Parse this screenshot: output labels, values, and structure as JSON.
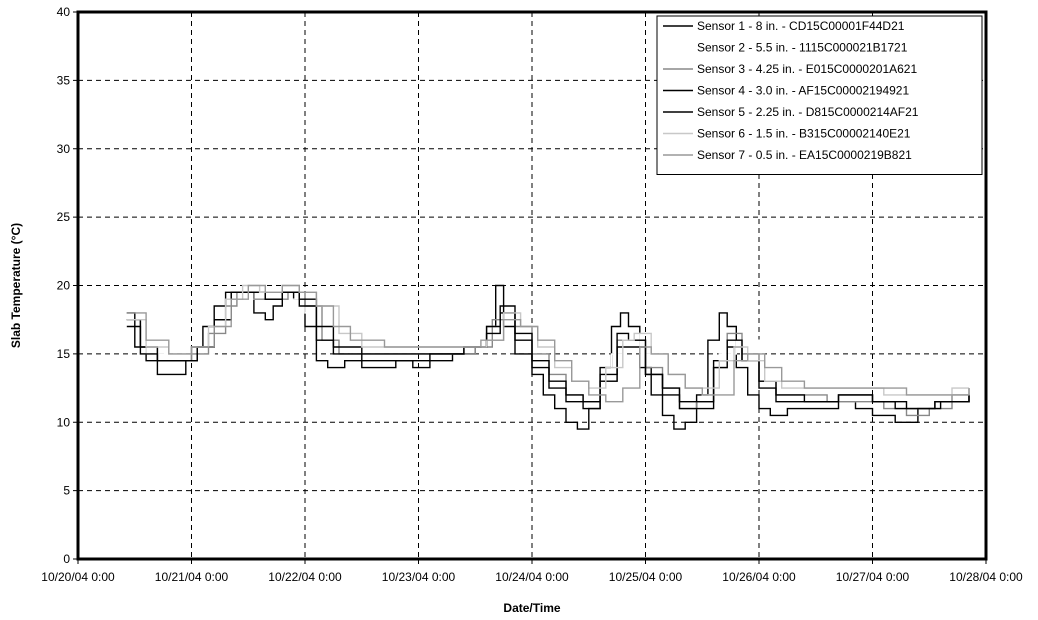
{
  "chart_data": {
    "type": "line",
    "title": "",
    "xlabel": "Date/Time",
    "ylabel": "Slab Temperature (°C)",
    "x_ticks": [
      "10/20/04 0:00",
      "10/21/04 0:00",
      "10/22/04 0:00",
      "10/23/04 0:00",
      "10/24/04 0:00",
      "10/25/04 0:00",
      "10/26/04 0:00",
      "10/27/04 0:00",
      "10/28/04 0:00"
    ],
    "x_unit": "days since 10/20/04 0:00",
    "xlim": [
      0,
      8
    ],
    "ylim": [
      0,
      40
    ],
    "y_ticks": [
      0,
      5,
      10,
      15,
      20,
      25,
      30,
      35,
      40
    ],
    "grid": true,
    "legend_position": "top-right",
    "series": [
      {
        "name": "Sensor 1 - 8 in. - CD15C00001F44D21",
        "color": "#000000",
        "points": [
          [
            0.43,
            18
          ],
          [
            0.5,
            15.5
          ],
          [
            0.6,
            14.5
          ],
          [
            0.7,
            13.5
          ],
          [
            0.85,
            13.5
          ],
          [
            0.95,
            14.5
          ],
          [
            1.0,
            15.5
          ],
          [
            1.1,
            17
          ],
          [
            1.2,
            18.5
          ],
          [
            1.3,
            19.5
          ],
          [
            1.45,
            19.5
          ],
          [
            1.55,
            18
          ],
          [
            1.65,
            17.5
          ],
          [
            1.72,
            18.5
          ],
          [
            1.8,
            19.5
          ],
          [
            1.9,
            19
          ],
          [
            2.0,
            17
          ],
          [
            2.1,
            14.5
          ],
          [
            2.2,
            14
          ],
          [
            2.35,
            14.5
          ],
          [
            2.5,
            14
          ],
          [
            2.7,
            14
          ],
          [
            2.8,
            14.5
          ],
          [
            2.95,
            14
          ],
          [
            3.1,
            14.5
          ],
          [
            3.3,
            15
          ],
          [
            3.5,
            15.5
          ],
          [
            3.6,
            17
          ],
          [
            3.68,
            20
          ],
          [
            3.75,
            17
          ],
          [
            3.85,
            15
          ],
          [
            4.0,
            13.5
          ],
          [
            4.1,
            12
          ],
          [
            4.2,
            11
          ],
          [
            4.3,
            10
          ],
          [
            4.4,
            9.5
          ],
          [
            4.5,
            11
          ],
          [
            4.6,
            14
          ],
          [
            4.7,
            17
          ],
          [
            4.78,
            18
          ],
          [
            4.85,
            17
          ],
          [
            4.95,
            14
          ],
          [
            5.05,
            12
          ],
          [
            5.15,
            10.5
          ],
          [
            5.25,
            9.5
          ],
          [
            5.35,
            10
          ],
          [
            5.45,
            12
          ],
          [
            5.55,
            16
          ],
          [
            5.65,
            18
          ],
          [
            5.72,
            17
          ],
          [
            5.8,
            14
          ],
          [
            5.9,
            12
          ],
          [
            6.0,
            11
          ],
          [
            6.1,
            10.5
          ],
          [
            6.25,
            11
          ],
          [
            6.4,
            11
          ],
          [
            6.55,
            11
          ],
          [
            6.7,
            11.5
          ],
          [
            6.85,
            11
          ],
          [
            7.0,
            10.5
          ],
          [
            7.2,
            10
          ],
          [
            7.4,
            11
          ],
          [
            7.55,
            11.5
          ],
          [
            7.7,
            11.5
          ],
          [
            7.85,
            12
          ]
        ]
      },
      {
        "name": "Sensor 2 - 5.5 in. - 1115C000021B1721",
        "color": "#ffffff",
        "points": [
          [
            0.43,
            17.5
          ],
          [
            0.6,
            15
          ],
          [
            0.8,
            14.5
          ],
          [
            1.0,
            15
          ],
          [
            1.2,
            17
          ],
          [
            1.4,
            19
          ],
          [
            1.6,
            19.5
          ],
          [
            1.8,
            19
          ],
          [
            2.0,
            18
          ],
          [
            2.2,
            16
          ],
          [
            2.4,
            15
          ],
          [
            2.7,
            15
          ],
          [
            3.0,
            15
          ],
          [
            3.3,
            15.5
          ],
          [
            3.6,
            17
          ],
          [
            3.75,
            18
          ],
          [
            3.9,
            16
          ],
          [
            4.1,
            14
          ],
          [
            4.3,
            12
          ],
          [
            4.5,
            12
          ],
          [
            4.7,
            15
          ],
          [
            4.8,
            16.5
          ],
          [
            4.95,
            15
          ],
          [
            5.1,
            13
          ],
          [
            5.3,
            11.5
          ],
          [
            5.5,
            12
          ],
          [
            5.65,
            15
          ],
          [
            5.8,
            16
          ],
          [
            6.0,
            13
          ],
          [
            6.2,
            12
          ],
          [
            6.5,
            11.5
          ],
          [
            6.8,
            11.5
          ],
          [
            7.1,
            11
          ],
          [
            7.4,
            11
          ],
          [
            7.7,
            11.5
          ],
          [
            7.85,
            12
          ]
        ]
      },
      {
        "name": "Sensor 3 - 4.25 in. - E015C0000201A621",
        "color": "#888888",
        "points": [
          [
            0.43,
            17.5
          ],
          [
            0.55,
            15.5
          ],
          [
            0.7,
            14.5
          ],
          [
            0.9,
            14.5
          ],
          [
            1.0,
            15
          ],
          [
            1.15,
            16.5
          ],
          [
            1.3,
            18.5
          ],
          [
            1.4,
            19.5
          ],
          [
            1.55,
            19
          ],
          [
            1.7,
            19
          ],
          [
            1.85,
            19.5
          ],
          [
            2.0,
            18.5
          ],
          [
            2.15,
            16
          ],
          [
            2.3,
            15
          ],
          [
            2.6,
            15
          ],
          [
            2.9,
            15
          ],
          [
            3.2,
            15
          ],
          [
            3.5,
            15.5
          ],
          [
            3.65,
            17.5
          ],
          [
            3.75,
            18
          ],
          [
            3.85,
            17
          ],
          [
            4.0,
            15
          ],
          [
            4.15,
            13.5
          ],
          [
            4.3,
            12
          ],
          [
            4.45,
            11.5
          ],
          [
            4.6,
            13
          ],
          [
            4.75,
            16
          ],
          [
            4.85,
            16
          ],
          [
            5.0,
            14
          ],
          [
            5.15,
            12.5
          ],
          [
            5.3,
            11
          ],
          [
            5.45,
            11.5
          ],
          [
            5.6,
            14
          ],
          [
            5.72,
            16.5
          ],
          [
            5.85,
            15
          ],
          [
            6.0,
            13
          ],
          [
            6.15,
            12
          ],
          [
            6.35,
            12
          ],
          [
            6.6,
            11.5
          ],
          [
            6.85,
            11.5
          ],
          [
            7.1,
            11
          ],
          [
            7.3,
            10.5
          ],
          [
            7.5,
            11
          ],
          [
            7.7,
            12
          ],
          [
            7.85,
            12.5
          ]
        ]
      },
      {
        "name": "Sensor 4 - 3.0 in. - AF15C00002194921",
        "color": "#000000",
        "points": [
          [
            0.43,
            17.5
          ],
          [
            0.55,
            15.5
          ],
          [
            0.7,
            14.5
          ],
          [
            0.9,
            14.5
          ],
          [
            1.05,
            15.5
          ],
          [
            1.2,
            17.5
          ],
          [
            1.35,
            19.5
          ],
          [
            1.5,
            19.5
          ],
          [
            1.65,
            19
          ],
          [
            1.8,
            19.5
          ],
          [
            1.95,
            18.5
          ],
          [
            2.1,
            16
          ],
          [
            2.25,
            15
          ],
          [
            2.5,
            14.5
          ],
          [
            2.8,
            14.5
          ],
          [
            3.1,
            15
          ],
          [
            3.4,
            15.5
          ],
          [
            3.6,
            17
          ],
          [
            3.72,
            18.5
          ],
          [
            3.85,
            16
          ],
          [
            4.0,
            14
          ],
          [
            4.15,
            12.5
          ],
          [
            4.3,
            11.5
          ],
          [
            4.45,
            11
          ],
          [
            4.6,
            13.5
          ],
          [
            4.75,
            16.5
          ],
          [
            4.85,
            16
          ],
          [
            5.0,
            13.5
          ],
          [
            5.15,
            12
          ],
          [
            5.3,
            11
          ],
          [
            5.45,
            11
          ],
          [
            5.6,
            14.5
          ],
          [
            5.72,
            16
          ],
          [
            5.85,
            14.5
          ],
          [
            6.0,
            12.5
          ],
          [
            6.15,
            11.5
          ],
          [
            6.4,
            11.5
          ],
          [
            6.7,
            12
          ],
          [
            7.0,
            11.5
          ],
          [
            7.2,
            11
          ],
          [
            7.4,
            11
          ],
          [
            7.6,
            11.5
          ],
          [
            7.85,
            12
          ]
        ]
      },
      {
        "name": "Sensor 5 - 2.25 in. - D815C0000214AF21",
        "color": "#000000",
        "points": [
          [
            0.43,
            17
          ],
          [
            0.55,
            15
          ],
          [
            0.7,
            14.5
          ],
          [
            0.9,
            14.5
          ],
          [
            1.05,
            15.5
          ],
          [
            1.2,
            17.5
          ],
          [
            1.35,
            19.5
          ],
          [
            1.5,
            19.5
          ],
          [
            1.65,
            19
          ],
          [
            1.8,
            19.5
          ],
          [
            1.95,
            19
          ],
          [
            2.1,
            17
          ],
          [
            2.25,
            15.5
          ],
          [
            2.5,
            15
          ],
          [
            2.8,
            15
          ],
          [
            3.1,
            15
          ],
          [
            3.4,
            15.5
          ],
          [
            3.6,
            16.5
          ],
          [
            3.72,
            18
          ],
          [
            3.85,
            16.5
          ],
          [
            4.0,
            14.5
          ],
          [
            4.15,
            13
          ],
          [
            4.3,
            12
          ],
          [
            4.45,
            11.5
          ],
          [
            4.6,
            13
          ],
          [
            4.75,
            15.5
          ],
          [
            4.85,
            15.5
          ],
          [
            5.0,
            13.5
          ],
          [
            5.15,
            12.5
          ],
          [
            5.3,
            11.5
          ],
          [
            5.45,
            11.5
          ],
          [
            5.6,
            14
          ],
          [
            5.72,
            15.5
          ],
          [
            5.85,
            14.5
          ],
          [
            6.0,
            13
          ],
          [
            6.15,
            12
          ],
          [
            6.4,
            11.5
          ],
          [
            6.7,
            12
          ],
          [
            7.0,
            11.5
          ],
          [
            7.3,
            11
          ],
          [
            7.55,
            11.5
          ],
          [
            7.85,
            12
          ]
        ]
      },
      {
        "name": "Sensor 6 - 1.5 in. - B315C00002140E21",
        "color": "#c8c8c8",
        "points": [
          [
            0.43,
            17.5
          ],
          [
            0.6,
            15.5
          ],
          [
            0.8,
            15
          ],
          [
            1.0,
            15.5
          ],
          [
            1.15,
            17
          ],
          [
            1.3,
            19
          ],
          [
            1.45,
            20
          ],
          [
            1.6,
            19.5
          ],
          [
            1.8,
            20
          ],
          [
            1.95,
            19.5
          ],
          [
            2.1,
            18.5
          ],
          [
            2.3,
            16.5
          ],
          [
            2.5,
            15.5
          ],
          [
            2.8,
            15.5
          ],
          [
            3.1,
            15.5
          ],
          [
            3.4,
            15.5
          ],
          [
            3.6,
            16
          ],
          [
            3.75,
            18
          ],
          [
            3.9,
            17
          ],
          [
            4.05,
            15.5
          ],
          [
            4.2,
            14
          ],
          [
            4.35,
            13
          ],
          [
            4.5,
            12.5
          ],
          [
            4.65,
            14
          ],
          [
            4.8,
            16
          ],
          [
            4.9,
            16.5
          ],
          [
            5.05,
            15
          ],
          [
            5.2,
            13.5
          ],
          [
            5.35,
            12.5
          ],
          [
            5.5,
            12.5
          ],
          [
            5.65,
            14.5
          ],
          [
            5.78,
            15.5
          ],
          [
            5.9,
            14.5
          ],
          [
            6.05,
            13
          ],
          [
            6.2,
            12.5
          ],
          [
            6.5,
            12.5
          ],
          [
            6.8,
            12.5
          ],
          [
            7.1,
            12
          ],
          [
            7.4,
            12
          ],
          [
            7.7,
            12.5
          ],
          [
            7.85,
            12.5
          ]
        ]
      },
      {
        "name": "Sensor 7 - 0.5 in. - EA15C0000219B821",
        "color": "#999999",
        "points": [
          [
            0.43,
            18
          ],
          [
            0.6,
            16
          ],
          [
            0.8,
            15
          ],
          [
            1.0,
            15.5
          ],
          [
            1.2,
            17
          ],
          [
            1.35,
            19
          ],
          [
            1.5,
            20
          ],
          [
            1.65,
            19.5
          ],
          [
            1.8,
            20
          ],
          [
            1.95,
            19.5
          ],
          [
            2.1,
            18.5
          ],
          [
            2.25,
            17
          ],
          [
            2.4,
            16
          ],
          [
            2.7,
            15.5
          ],
          [
            3.0,
            15.5
          ],
          [
            3.3,
            15.5
          ],
          [
            3.55,
            16
          ],
          [
            3.75,
            17.5
          ],
          [
            3.9,
            17
          ],
          [
            4.05,
            16
          ],
          [
            4.2,
            14.5
          ],
          [
            4.35,
            13
          ],
          [
            4.5,
            12
          ],
          [
            4.65,
            11.5
          ],
          [
            4.8,
            12.5
          ],
          [
            4.95,
            15.5
          ],
          [
            5.05,
            15
          ],
          [
            5.2,
            13.5
          ],
          [
            5.35,
            12.5
          ],
          [
            5.5,
            12
          ],
          [
            5.65,
            12
          ],
          [
            5.78,
            14.5
          ],
          [
            5.9,
            15
          ],
          [
            6.05,
            14
          ],
          [
            6.2,
            13
          ],
          [
            6.4,
            12.5
          ],
          [
            6.7,
            12.5
          ],
          [
            7.0,
            12.5
          ],
          [
            7.3,
            12
          ],
          [
            7.6,
            12
          ],
          [
            7.85,
            12.5
          ]
        ]
      }
    ]
  }
}
